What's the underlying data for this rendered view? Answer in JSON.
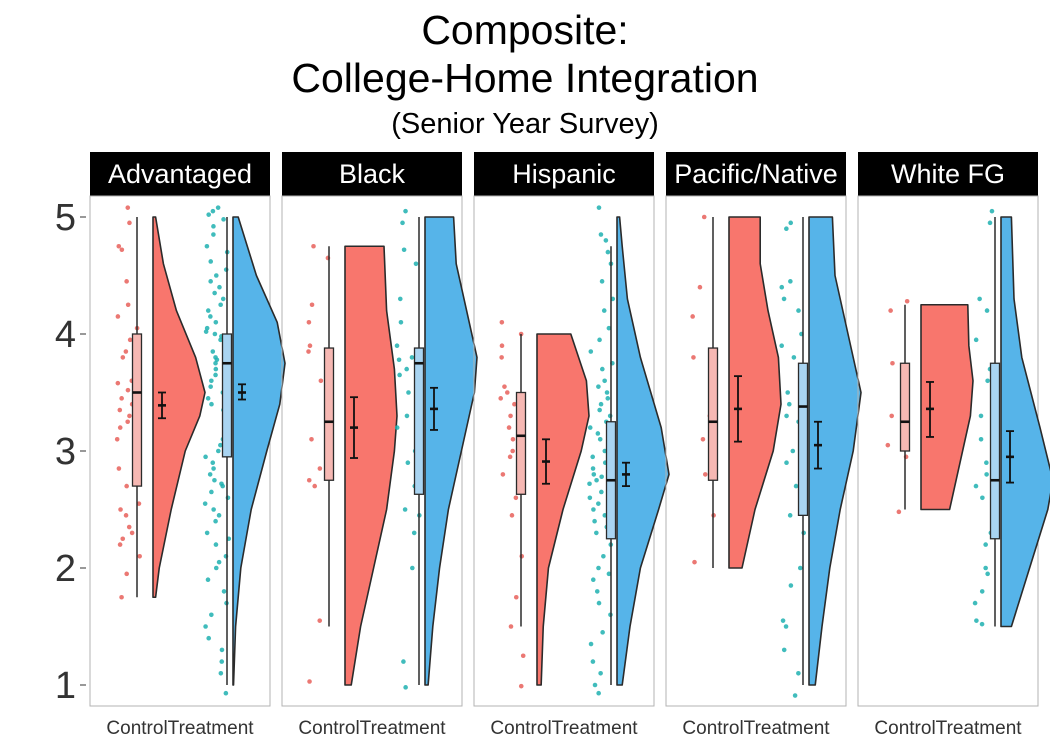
{
  "chart_data": {
    "type": "raincloud",
    "title": "Composite:",
    "title_line2": "College-Home Integration",
    "subtitle": "(Senior Year Survey)",
    "xlabel": "",
    "ylabel": "",
    "ylim": [
      1,
      5
    ],
    "yticks": [
      1,
      2,
      3,
      4,
      5
    ],
    "categories": [
      "Control",
      "Treatment"
    ],
    "legend": "none",
    "grid": false,
    "colors": {
      "Control": "#f8766d",
      "Treatment": "#56b4e9",
      "Control_points": "#e8605a",
      "Treatment_points": "#1fb0b0"
    },
    "panels": [
      {
        "label": "Advantaged",
        "groups": [
          {
            "name": "Control",
            "box": {
              "min": 1.75,
              "q1": 2.7,
              "median": 3.5,
              "q3": 4.0,
              "max": 5.0
            },
            "mean": 3.39,
            "ci": [
              3.28,
              3.5
            ],
            "density": [
              [
                1.75,
                0.05
              ],
              [
                2.0,
                0.12
              ],
              [
                2.5,
                0.35
              ],
              [
                3.0,
                0.62
              ],
              [
                3.3,
                0.9
              ],
              [
                3.5,
                1.0
              ],
              [
                3.8,
                0.82
              ],
              [
                4.2,
                0.45
              ],
              [
                4.6,
                0.2
              ],
              [
                5.0,
                0.05
              ]
            ],
            "points": [
              5.08,
              4.95,
              4.75,
              4.72,
              4.45,
              4.25,
              4.15,
              4.05,
              3.95,
              3.85,
              3.8,
              3.7,
              3.6,
              3.58,
              3.52,
              3.45,
              3.4,
              3.35,
              3.3,
              3.25,
              3.2,
              3.1,
              3.0,
              2.95,
              2.85,
              2.7,
              2.55,
              2.5,
              2.45,
              2.35,
              2.3,
              2.25,
              2.2,
              2.1,
              1.95,
              1.75
            ]
          },
          {
            "name": "Treatment",
            "box": {
              "min": 1.0,
              "q1": 2.95,
              "median": 3.75,
              "q3": 4.0,
              "max": 5.0
            },
            "mean": 3.5,
            "ci": [
              3.44,
              3.57
            ],
            "density": [
              [
                1.0,
                0.01
              ],
              [
                1.5,
                0.05
              ],
              [
                2.0,
                0.15
              ],
              [
                2.5,
                0.35
              ],
              [
                3.0,
                0.65
              ],
              [
                3.4,
                0.9
              ],
              [
                3.75,
                1.0
              ],
              [
                4.1,
                0.85
              ],
              [
                4.5,
                0.45
              ],
              [
                5.0,
                0.1
              ]
            ],
            "points": [
              5.08,
              5.05,
              5.02,
              4.98,
              4.92,
              4.85,
              4.75,
              4.7,
              4.62,
              4.55,
              4.5,
              4.45,
              4.4,
              4.35,
              4.3,
              4.25,
              4.2,
              4.15,
              4.1,
              4.05,
              4.02,
              4.0,
              3.98,
              3.95,
              3.9,
              3.85,
              3.8,
              3.78,
              3.75,
              3.72,
              3.7,
              3.65,
              3.6,
              3.55,
              3.5,
              3.45,
              3.4,
              3.35,
              3.3,
              3.25,
              3.2,
              3.15,
              3.1,
              3.05,
              3.0,
              2.95,
              2.9,
              2.85,
              2.8,
              2.75,
              2.72,
              2.7,
              2.65,
              2.6,
              2.55,
              2.5,
              2.45,
              2.4,
              2.3,
              2.25,
              2.2,
              2.1,
              2.05,
              2.0,
              1.9,
              1.8,
              1.7,
              1.6,
              1.5,
              1.4,
              1.3,
              1.2,
              1.1,
              0.93
            ]
          }
        ]
      },
      {
        "label": "Black",
        "groups": [
          {
            "name": "Control",
            "box": {
              "min": 1.5,
              "q1": 2.75,
              "median": 3.25,
              "q3": 3.88,
              "max": 4.75
            },
            "mean": 3.2,
            "ci": [
              2.94,
              3.46
            ],
            "density": [
              [
                1.0,
                0.12
              ],
              [
                1.5,
                0.3
              ],
              [
                2.0,
                0.55
              ],
              [
                2.5,
                0.8
              ],
              [
                3.0,
                0.95
              ],
              [
                3.3,
                1.0
              ],
              [
                3.7,
                0.95
              ],
              [
                4.2,
                0.8
              ],
              [
                4.75,
                0.75
              ]
            ],
            "points": [
              4.75,
              4.65,
              4.25,
              4.1,
              3.9,
              3.85,
              3.6,
              3.35,
              3.25,
              3.1,
              2.85,
              2.75,
              2.7,
              1.55,
              1.03
            ]
          },
          {
            "name": "Treatment",
            "box": {
              "min": 1.0,
              "q1": 2.63,
              "median": 3.75,
              "q3": 3.88,
              "max": 5.0
            },
            "mean": 3.36,
            "ci": [
              3.18,
              3.54
            ],
            "density": [
              [
                1.0,
                0.06
              ],
              [
                1.5,
                0.15
              ],
              [
                2.0,
                0.28
              ],
              [
                2.5,
                0.45
              ],
              [
                3.0,
                0.7
              ],
              [
                3.5,
                0.95
              ],
              [
                3.8,
                1.0
              ],
              [
                4.2,
                0.8
              ],
              [
                4.6,
                0.6
              ],
              [
                5.0,
                0.55
              ]
            ],
            "points": [
              5.05,
              4.95,
              4.72,
              4.6,
              4.3,
              4.1,
              3.9,
              3.8,
              3.78,
              3.7,
              3.65,
              3.5,
              3.3,
              3.2,
              3.0,
              2.9,
              2.7,
              2.5,
              2.45,
              2.3,
              2.0,
              1.2,
              0.98
            ]
          }
        ]
      },
      {
        "label": "Hispanic",
        "groups": [
          {
            "name": "Control",
            "box": {
              "min": 1.5,
              "q1": 2.63,
              "median": 3.13,
              "q3": 3.5,
              "max": 4.0
            },
            "mean": 2.91,
            "ci": [
              2.72,
              3.1
            ],
            "density": [
              [
                1.0,
                0.08
              ],
              [
                1.5,
                0.12
              ],
              [
                2.0,
                0.22
              ],
              [
                2.5,
                0.5
              ],
              [
                3.0,
                0.85
              ],
              [
                3.3,
                1.0
              ],
              [
                3.6,
                0.95
              ],
              [
                4.0,
                0.65
              ]
            ],
            "points": [
              4.1,
              4.0,
              3.9,
              3.8,
              3.55,
              3.5,
              3.45,
              3.4,
              3.3,
              3.2,
              3.1,
              3.05,
              3.0,
              2.95,
              2.8,
              2.7,
              2.6,
              2.45,
              2.1,
              1.75,
              1.5,
              1.25,
              0.99
            ]
          },
          {
            "name": "Treatment",
            "box": {
              "min": 1.0,
              "q1": 2.25,
              "median": 2.75,
              "q3": 3.25,
              "max": 4.75
            },
            "mean": 2.8,
            "ci": [
              2.7,
              2.9
            ],
            "density": [
              [
                1.0,
                0.1
              ],
              [
                1.5,
                0.25
              ],
              [
                2.0,
                0.45
              ],
              [
                2.5,
                0.8
              ],
              [
                2.8,
                1.0
              ],
              [
                3.2,
                0.85
              ],
              [
                3.8,
                0.45
              ],
              [
                4.3,
                0.2
              ],
              [
                4.75,
                0.1
              ],
              [
                5.0,
                0.05
              ]
            ],
            "points": [
              5.08,
              4.85,
              4.8,
              4.7,
              4.6,
              4.45,
              4.3,
              4.2,
              4.05,
              3.95,
              3.85,
              3.75,
              3.7,
              3.6,
              3.55,
              3.5,
              3.45,
              3.4,
              3.35,
              3.3,
              3.25,
              3.2,
              3.15,
              3.1,
              3.05,
              3.0,
              2.95,
              2.9,
              2.85,
              2.8,
              2.78,
              2.75,
              2.72,
              2.7,
              2.65,
              2.6,
              2.55,
              2.5,
              2.45,
              2.4,
              2.35,
              2.3,
              2.2,
              2.1,
              2.0,
              1.95,
              1.9,
              1.8,
              1.7,
              1.6,
              1.45,
              1.35,
              1.2,
              1.1,
              1.0,
              0.93
            ]
          }
        ]
      },
      {
        "label": "Pacific/Native",
        "groups": [
          {
            "name": "Control",
            "box": {
              "min": 2.0,
              "q1": 2.75,
              "median": 3.25,
              "q3": 3.88,
              "max": 5.0
            },
            "mean": 3.36,
            "ci": [
              3.08,
              3.64
            ],
            "density": [
              [
                2.0,
                0.25
              ],
              [
                2.5,
                0.5
              ],
              [
                3.0,
                0.85
              ],
              [
                3.4,
                1.0
              ],
              [
                3.8,
                0.95
              ],
              [
                4.2,
                0.75
              ],
              [
                4.6,
                0.6
              ],
              [
                5.0,
                0.6
              ]
            ],
            "points": [
              5.0,
              4.4,
              4.15,
              3.8,
              3.3,
              3.1,
              2.8,
              2.45,
              2.05
            ]
          },
          {
            "name": "Treatment",
            "box": {
              "min": 1.0,
              "q1": 2.45,
              "median": 3.38,
              "q3": 3.75,
              "max": 5.0
            },
            "mean": 3.05,
            "ci": [
              2.85,
              3.25
            ],
            "density": [
              [
                1.0,
                0.12
              ],
              [
                1.5,
                0.25
              ],
              [
                2.0,
                0.4
              ],
              [
                2.5,
                0.6
              ],
              [
                3.0,
                0.85
              ],
              [
                3.5,
                1.0
              ],
              [
                4.0,
                0.75
              ],
              [
                4.5,
                0.5
              ],
              [
                5.0,
                0.45
              ]
            ],
            "points": [
              4.95,
              4.9,
              4.45,
              4.4,
              4.3,
              4.2,
              4.0,
              3.9,
              3.8,
              3.5,
              3.4,
              3.3,
              3.25,
              3.0,
              2.9,
              2.7,
              2.6,
              2.55,
              2.45,
              2.3,
              2.0,
              1.85,
              1.55,
              1.5,
              1.3,
              1.1,
              0.91
            ]
          }
        ]
      },
      {
        "label": "White FG",
        "groups": [
          {
            "name": "Control",
            "box": {
              "min": 2.5,
              "q1": 3.0,
              "median": 3.25,
              "q3": 3.75,
              "max": 4.25
            },
            "mean": 3.36,
            "ci": [
              3.12,
              3.59
            ],
            "density": [
              [
                2.5,
                0.55
              ],
              [
                2.9,
                0.75
              ],
              [
                3.3,
                0.95
              ],
              [
                3.6,
                1.0
              ],
              [
                3.9,
                0.92
              ],
              [
                4.25,
                0.9
              ]
            ],
            "points": [
              4.28,
              4.2,
              3.75,
              3.3,
              3.05,
              2.95,
              2.48
            ]
          },
          {
            "name": "Treatment",
            "box": {
              "min": 1.5,
              "q1": 2.25,
              "median": 2.75,
              "q3": 3.75,
              "max": 5.0
            },
            "mean": 2.95,
            "ci": [
              2.73,
              3.17
            ],
            "density": [
              [
                1.5,
                0.2
              ],
              [
                2.0,
                0.55
              ],
              [
                2.5,
                0.9
              ],
              [
                2.75,
                1.0
              ],
              [
                3.2,
                0.75
              ],
              [
                3.8,
                0.4
              ],
              [
                4.3,
                0.25
              ],
              [
                5.0,
                0.2
              ]
            ],
            "points": [
              5.05,
              4.95,
              4.3,
              4.2,
              3.95,
              3.7,
              3.65,
              3.6,
              3.3,
              3.1,
              2.9,
              2.8,
              2.7,
              2.6,
              2.45,
              2.3,
              2.2,
              2.0,
              1.95,
              1.8,
              1.7,
              1.55,
              1.52
            ]
          }
        ]
      }
    ]
  }
}
